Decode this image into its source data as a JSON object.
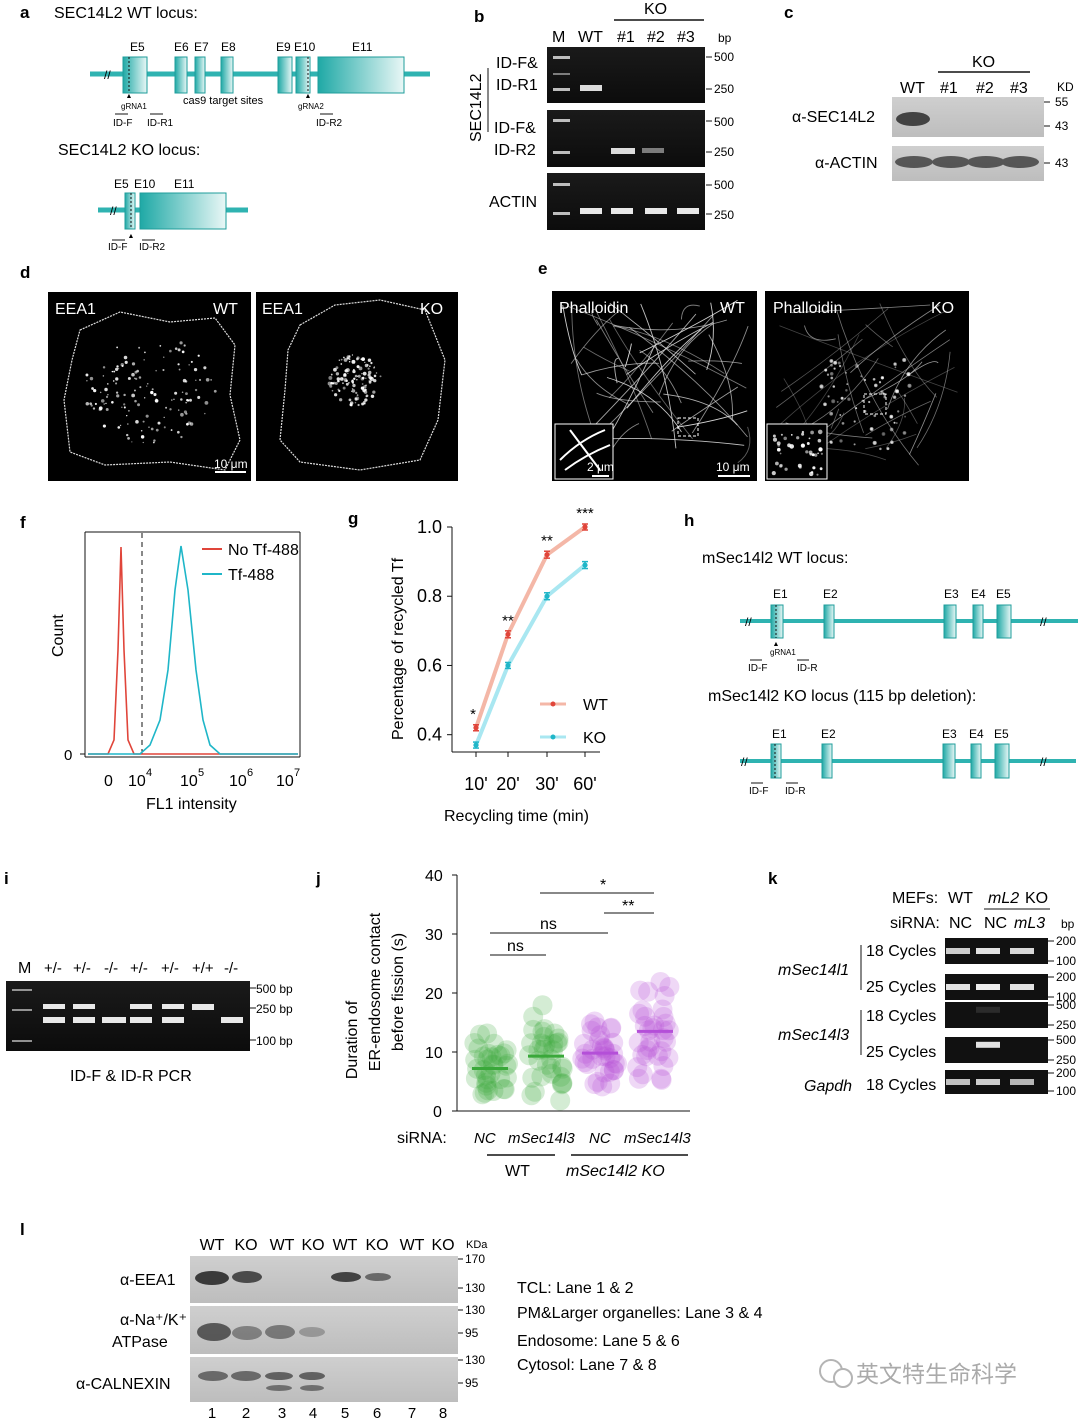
{
  "panels": {
    "a": "a",
    "b": "b",
    "c": "c",
    "d": "d",
    "e": "e",
    "f": "f",
    "g": "g",
    "h": "h",
    "i": "i",
    "j": "j",
    "k": "k",
    "l": "l"
  },
  "colors": {
    "teal": "#2fb3b1",
    "teal_dark": "#1f9d9b",
    "red": "#e0453a",
    "red_light": "#f4b7a7",
    "cyan": "#1fb6c8",
    "cyan_light": "#a9e7f1",
    "green": "#3aa83a",
    "purple": "#b44fd8"
  },
  "panel_a": {
    "wt_title": "SEC14L2 WT locus:",
    "ko_title": "SEC14L2 KO locus:",
    "exons_wt": [
      "E5",
      "E6",
      "E7",
      "E8",
      "E9",
      "E10",
      "E11"
    ],
    "grna1": "gRNA1",
    "grna2": "gRNA2",
    "cas9": "cas9 target sites",
    "idf": "ID-F",
    "idr1": "ID-R1",
    "idr2": "ID-R2",
    "exons_ko": [
      "E5",
      "E10",
      "E11"
    ]
  },
  "panel_b": {
    "ko": "KO",
    "lanes": [
      "M",
      "WT",
      "#1",
      "#2",
      "#3"
    ],
    "bp": "bp",
    "gene": "SEC14L2",
    "row1": [
      "ID-F&",
      "ID-R1"
    ],
    "row2": [
      "ID-F&",
      "ID-R2"
    ],
    "row3": "ACTIN",
    "sizes": [
      "500",
      "250"
    ]
  },
  "panel_c": {
    "ko": "KO",
    "lanes": [
      "WT",
      "#1",
      "#2",
      "#3"
    ],
    "kd": "KD",
    "ab1": "α-SEC14L2",
    "ab2": "α-ACTIN",
    "m1": [
      "55",
      "43"
    ],
    "m2": "43"
  },
  "panel_d": {
    "label": "EEA1",
    "wt": "WT",
    "ko": "KO",
    "scale": "10 μm"
  },
  "panel_e": {
    "label": "Phalloidin",
    "wt": "WT",
    "ko": "KO",
    "scale1": "2 μm",
    "scale2": "10 μm"
  },
  "panel_f": {
    "legend": [
      "No Tf-488",
      "Tf-488"
    ],
    "ylabel": "Count",
    "xlabel": "FL1 intensity",
    "y0": "0",
    "xticks": [
      "0",
      "10",
      "4",
      "10",
      "5",
      "10",
      "6",
      "10",
      "7"
    ]
  },
  "chart_data": {
    "type": "line",
    "ylabel": "Percentage of recycled Tf",
    "xlabel": "Recycling time (min)",
    "categories": [
      "10'",
      "20'",
      "30'",
      "60'"
    ],
    "ylim": [
      0.35,
      1.0
    ],
    "yticks": [
      "0.4",
      "0.6",
      "0.8",
      "1.0"
    ],
    "series": [
      {
        "name": "WT",
        "values": [
          0.42,
          0.69,
          0.92,
          1.0
        ],
        "err": [
          0.005,
          0.01,
          0.01,
          0.005
        ]
      },
      {
        "name": "KO",
        "values": [
          0.37,
          0.6,
          0.8,
          0.89
        ],
        "err": [
          0.005,
          0.005,
          0.01,
          0.01
        ]
      }
    ],
    "sig": [
      "*",
      "**",
      "**",
      "***"
    ]
  },
  "panel_h": {
    "wt_title": "mSec14l2 WT locus:",
    "ko_title": "mSec14l2 KO locus (115 bp deletion):",
    "exons": [
      "E1",
      "E2",
      "E3",
      "E4",
      "E5"
    ],
    "grna": "gRNA1",
    "idf": "ID-F",
    "idr": "ID-R"
  },
  "panel_i": {
    "lanes": [
      "M",
      "+/-",
      "+/-",
      "-/-",
      "+/-",
      "+/-",
      "+/+",
      "-/-"
    ],
    "sizes": [
      "500 bp",
      "250 bp",
      "100 bp"
    ],
    "caption": "ID-F & ID-R PCR"
  },
  "panel_j": {
    "ylabel1": "Duration of",
    "ylabel2": "ER-endosome contact",
    "ylabel3": "before fission (s)",
    "yticks": [
      "0",
      "10",
      "20",
      "30",
      "40"
    ],
    "sirna": "siRNA:",
    "groups": [
      "NC",
      "mSec14l3",
      "NC",
      "mSec14l3"
    ],
    "geno": [
      "WT",
      "mSec14l2 KO"
    ],
    "sig": [
      "ns",
      "ns",
      "*",
      "**"
    ],
    "means": [
      7.2,
      9.3,
      9.8,
      13.5
    ]
  },
  "panel_k": {
    "mefs": "MEFs:",
    "wt": "WT",
    "ko_gene": "mL2",
    "ko": "KO",
    "sirna": "siRNA:",
    "nc": "NC",
    "ml3": "mL3",
    "bp": "bp",
    "genes": [
      "mSec14l1",
      "mSec14l3",
      "Gapdh"
    ],
    "cycles": [
      "18 Cycles",
      "25 Cycles",
      "18 Cycles",
      "25 Cycles",
      "18 Cycles"
    ],
    "sizes": [
      [
        "200",
        "100"
      ],
      [
        "200",
        "100"
      ],
      [
        "500",
        "250"
      ],
      [
        "500",
        "250"
      ],
      [
        "200",
        "100"
      ]
    ]
  },
  "panel_l": {
    "lanes": [
      "WT",
      "KO",
      "WT",
      "KO",
      "WT",
      "KO",
      "WT",
      "KO"
    ],
    "kda": "KDa",
    "ab1": "α-EEA1",
    "ab2a": "α-Na⁺/K⁺",
    "ab2b": "ATPase",
    "ab3": "α-CALNEXIN",
    "m1": [
      "170",
      "130"
    ],
    "m2": [
      "130",
      "95"
    ],
    "m3": [
      "130",
      "95"
    ],
    "nums": [
      "1",
      "2",
      "3",
      "4",
      "5",
      "6",
      "7",
      "8"
    ],
    "notes": [
      "TCL: Lane 1 & 2",
      "PM&Larger organelles: Lane 3 & 4",
      "Endosome: Lane 5 & 6",
      "Cytosol: Lane 7 & 8"
    ]
  },
  "watermark": "英文特生命科学"
}
